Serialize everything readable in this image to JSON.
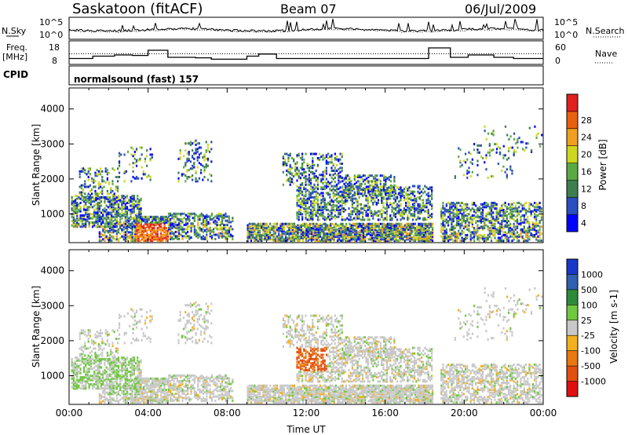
{
  "header": {
    "station": "Saskatoon (fitACF)",
    "beam": "Beam 07",
    "date": "06/Jul/2009"
  },
  "sky_panel": {
    "left_label": "N.Sky",
    "right_label": "N.Search",
    "left_ticks": [
      "10^5",
      "10^0"
    ],
    "right_ticks": [
      "10^5",
      "10^0"
    ]
  },
  "freq_panel": {
    "left_label_1": "Freq.",
    "left_label_2": "[MHz]",
    "right_label": "Nave",
    "left_ticks": [
      "18",
      "8"
    ],
    "right_ticks": [
      "60",
      "0"
    ]
  },
  "cpid": {
    "label": "CPID",
    "value": "normalsound (fast) 157"
  },
  "chart_data": [
    {
      "type": "heatmap",
      "title": "Power",
      "ylabel": "Slant Range [km]",
      "ylim": [
        180,
        4600
      ],
      "yticks": [
        "1000",
        "2000",
        "3000",
        "4000"
      ],
      "xlim": [
        0,
        24
      ],
      "colorbar_label": "Power [dB]",
      "colorbar_ticks": [
        "4",
        "8",
        "12",
        "16",
        "20",
        "24",
        "28"
      ],
      "colorbar_colors": [
        "#0000ff",
        "#2a4fbf",
        "#3d7f4f",
        "#5aaa44",
        "#cfd61f",
        "#f0a020",
        "#e86010",
        "#e02020"
      ],
      "notes": "Backscatter power vs time and slant range; strong echoes near 04:00-07:00 at 200-600 km, band 12:00-18:00 below 600 km"
    },
    {
      "type": "heatmap",
      "title": "Velocity",
      "ylabel": "Slant Range [km]",
      "ylim": [
        180,
        4600
      ],
      "yticks": [
        "1000",
        "2000",
        "3000",
        "4000"
      ],
      "xlabel": "Time UT",
      "xticks": [
        "00:00",
        "04:00",
        "08:00",
        "12:00",
        "16:00",
        "20:00",
        "00:00"
      ],
      "xlim": [
        0,
        24
      ],
      "colorbar_label": "Velocity [m s-1]",
      "colorbar_ticks": [
        "1000",
        "500",
        "100",
        "25",
        "-25",
        "-100",
        "-500",
        "-1000"
      ],
      "colorbar_colors": [
        "#1838c8",
        "#3060b0",
        "#2e8b3a",
        "#70c840",
        "#c8c8c8",
        "#f0b020",
        "#e87810",
        "#e05010",
        "#e01010"
      ]
    }
  ],
  "colors": {
    "frame": "#000000",
    "background": "#ffffff"
  }
}
